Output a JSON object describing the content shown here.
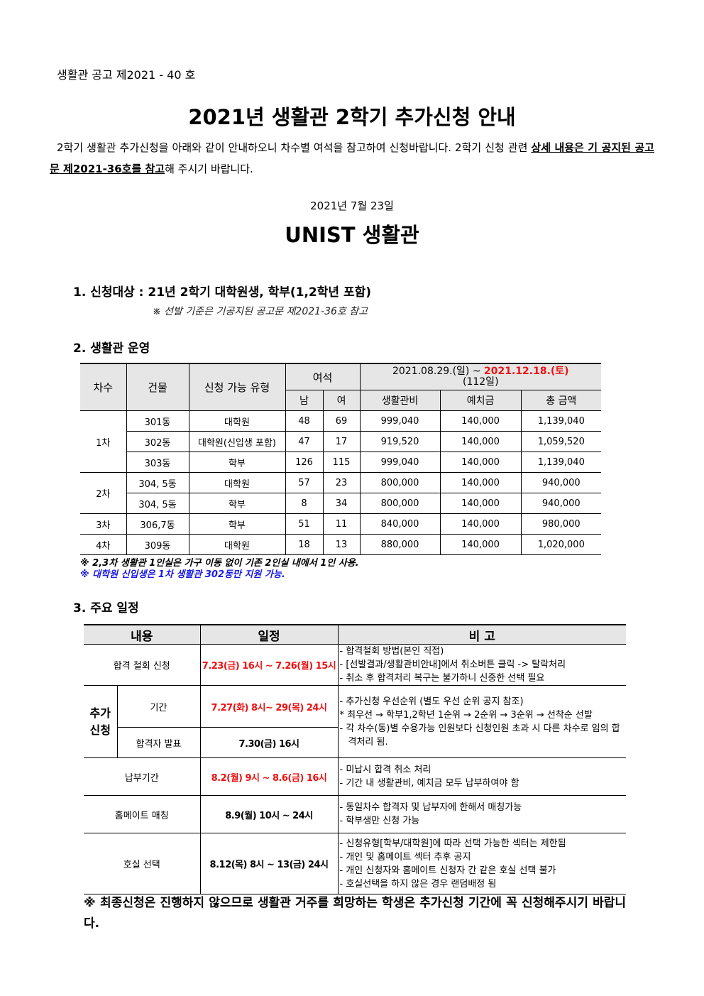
{
  "notice_number": "생활관 공고 제2021 - 40 호",
  "title": "2021년 생활관 2학기 추가신청 안내",
  "intro": {
    "text1": "2학기 생활관 추가신청을 아래와 같이 안내하오니 차수별 여석을 참고하여 신청바랍니다. 2학기 신청 관련 ",
    "underlined": "상세 내용은 기 공지된 공고문 제2021-36호를 참고",
    "text2": "해 주시기 바랍니다."
  },
  "date": "2021년 7월 23일",
  "org": "UNIST 생활관",
  "section1": {
    "heading": "1. 신청대상 : 21년 2학기 대학원생, 학부(1,2학년 포함)",
    "note": "※ 선발 기준은 기공지된 공고문 제2021-36호 참고"
  },
  "section2": {
    "heading": "2. 생활관 운영",
    "headers": {
      "round": "차수",
      "building": "건물",
      "type": "신청 가능 유형",
      "vacancy": "여석",
      "period_start": "2021.08.29.(일) ~ ",
      "period_end": "2021.12.18.(토)",
      "period_days": "(112일)",
      "male": "남",
      "female": "여",
      "fee": "생활관비",
      "deposit": "예치금",
      "total": "총 금액"
    },
    "rows": [
      {
        "round": "1차",
        "building": "301동",
        "type": "대학원",
        "male": "48",
        "female": "69",
        "fee": "999,040",
        "deposit": "140,000",
        "total": "1,139,040"
      },
      {
        "round": "",
        "building": "302동",
        "type": "대학원(신입생 포함)",
        "male": "47",
        "female": "17",
        "fee": "919,520",
        "deposit": "140,000",
        "total": "1,059,520"
      },
      {
        "round": "",
        "building": "303동",
        "type": "학부",
        "male": "126",
        "female": "115",
        "fee": "999,040",
        "deposit": "140,000",
        "total": "1,139,040"
      },
      {
        "round": "2차",
        "building": "304, 5동",
        "type": "대학원",
        "male": "57",
        "female": "23",
        "fee": "800,000",
        "deposit": "140,000",
        "total": "940,000"
      },
      {
        "round": "",
        "building": "304, 5동",
        "type": "학부",
        "male": "8",
        "female": "34",
        "fee": "800,000",
        "deposit": "140,000",
        "total": "940,000"
      },
      {
        "round": "3차",
        "building": "306,7동",
        "type": "학부",
        "male": "51",
        "female": "11",
        "fee": "840,000",
        "deposit": "140,000",
        "total": "980,000"
      },
      {
        "round": "4차",
        "building": "309동",
        "type": "대학원",
        "male": "18",
        "female": "13",
        "fee": "880,000",
        "deposit": "140,000",
        "total": "1,020,000"
      }
    ],
    "note1": "※ 2,3차 생활관 1인실은 가구 이동 없이 기존 2인실 내에서 1인 사용.",
    "note2": "※ 대학원 신입생은 1차 생활관 302동만 지원 가능."
  },
  "section3": {
    "heading": "3. 주요 일정",
    "headers": {
      "content": "내용",
      "schedule": "일정",
      "remarks": "비 고"
    },
    "cancel": {
      "label": "합격 철회 신청",
      "schedule": "7.23(금) 16시 ~ 7.26(월) 15시",
      "remarks": [
        "- 합격철회 방법(본인 직접)",
        "- [선발결과/생활관비안내]에서 취소버튼 클릭 -> 탈락처리",
        "- 취소 후 합격처리 복구는 불가하니 신중한 선택 필요"
      ]
    },
    "additional": {
      "label": "추가 신청",
      "period_label": "기간",
      "period": "7.27(화) 8시~ 29(목) 24시",
      "announce_label": "합격자 발표",
      "announce": "7.30(금) 16시",
      "remarks": [
        "- 추가신청 우선순위 (별도 우선 순위 공지 참조)",
        "* 최우선 → 학부1,2학년 1순위 → 2순위 → 3순위 → 선착순 선발",
        "- 각 차수(동)별 수용가능 인원보다 신청인원 초과 시 다른 차수로 임의 합격처리 됨."
      ]
    },
    "payment": {
      "label": "납부기간",
      "schedule": "8.2(월) 9시 ~ 8.6(금) 16시",
      "remarks": [
        "- 미납시 합격 취소 처리",
        "- 기간 내 생활관비, 예치금 모두 납부하여야 함"
      ]
    },
    "roommate": {
      "label": "홈메이트 매칭",
      "schedule": "8.9(월) 10시 ~ 24시",
      "remarks": [
        "- 동일차수 합격자 및 납부자에 한해서 매칭가능",
        "- 학부생만 신청 가능"
      ]
    },
    "room": {
      "label": "호실 선택",
      "schedule": "8.12(목) 8시 ~ 13(금) 24시",
      "remarks": [
        "- 신청유형[학부/대학원]에 따라 선택 가능한 섹터는 제한됨",
        "- 개인 및 홈메이트 섹터 추후 공지",
        "- 개인 신청자와 홈메이트 신청자 간 같은 호실 선택 불가",
        "- 호실선택을 하지 않은 경우 랜덤배정 됨"
      ]
    }
  },
  "final_note": "※ 최종신청은 진행하지 않으므로 생활관 거주를 희망하는 학생은 추가신청 기간에 꼭 신청해주시기 바랍니다.",
  "colors": {
    "highlight_red": "#e11111",
    "note_blue": "#1a1ae6",
    "header_gray": "#e6e6e6"
  }
}
